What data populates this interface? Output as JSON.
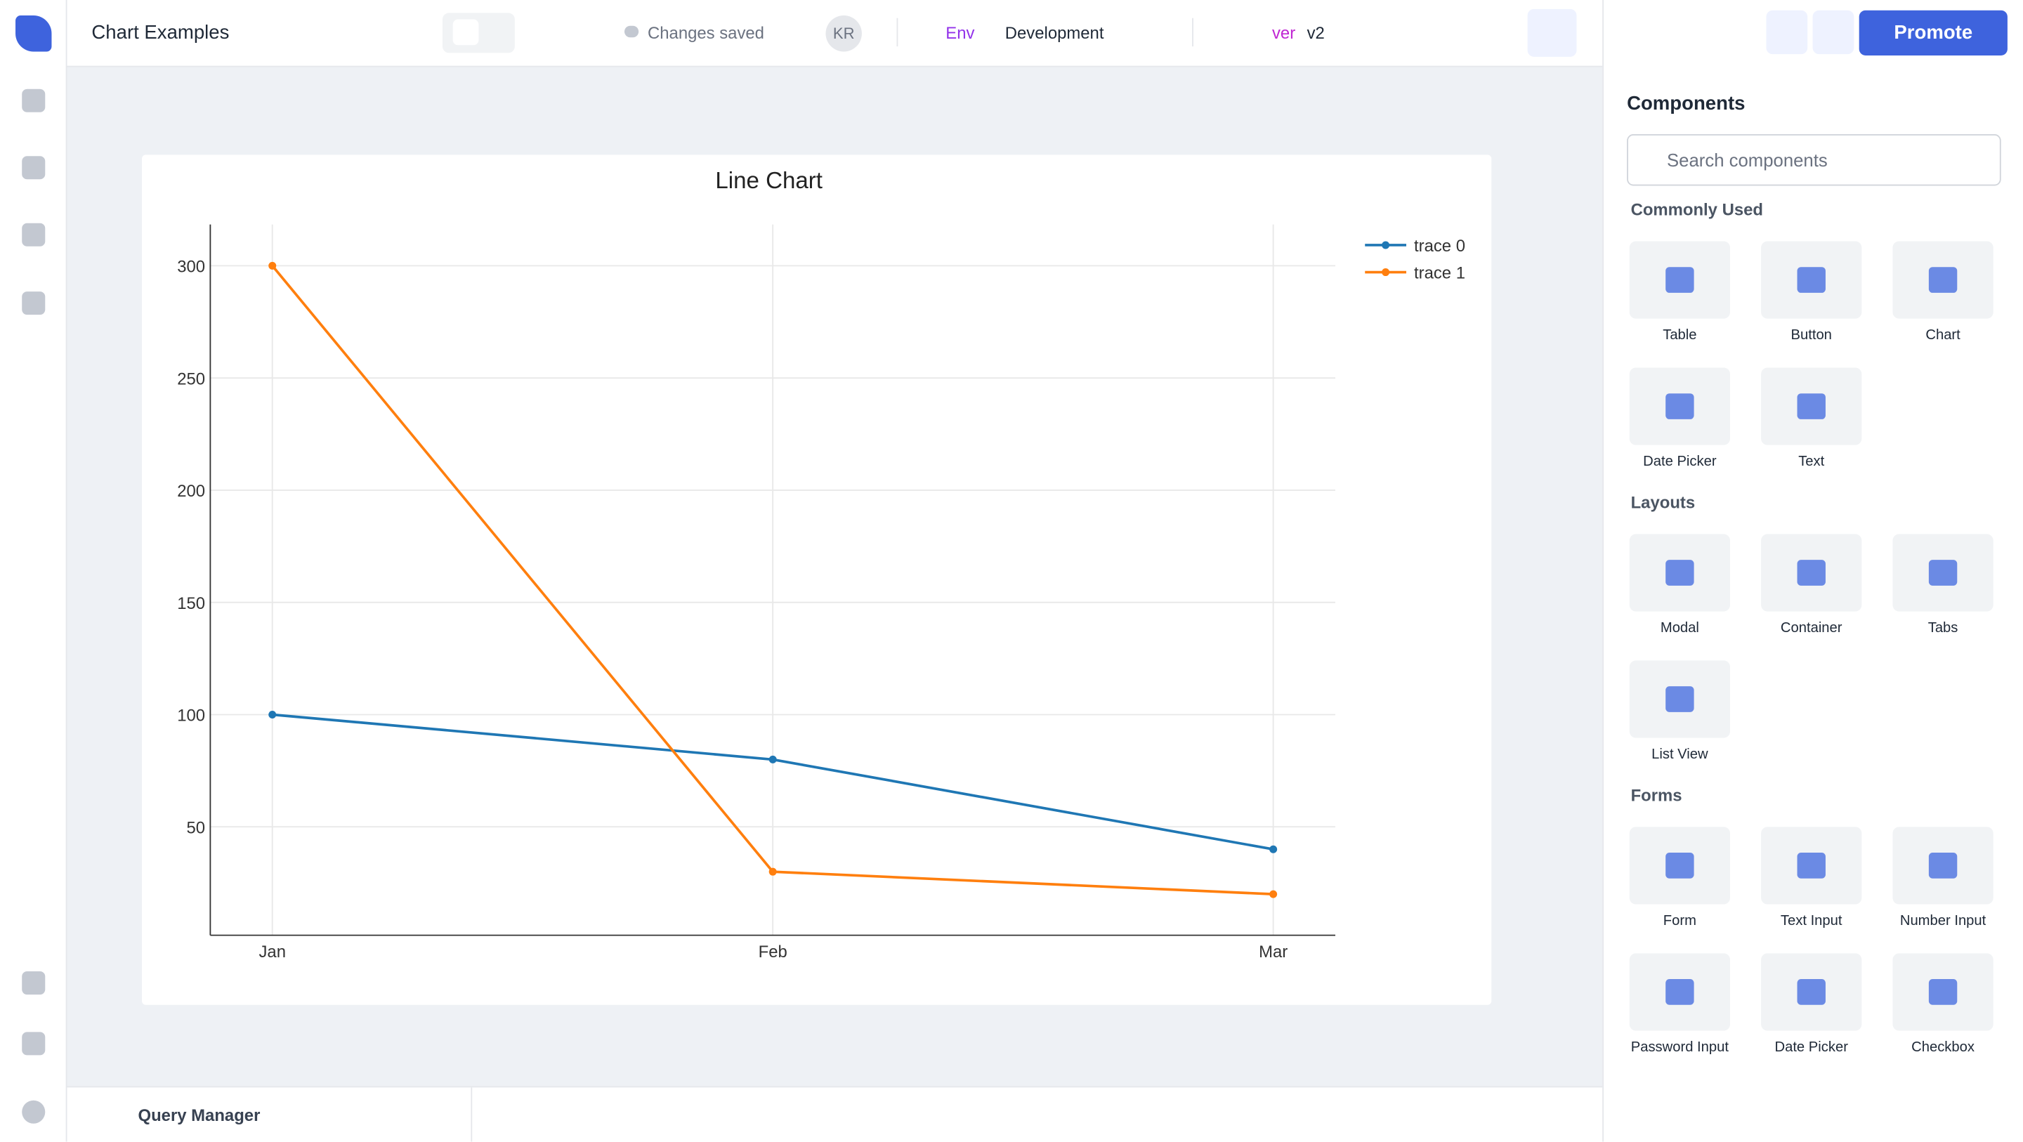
{
  "header": {
    "app_name": "Chart Examples",
    "save_status": "Changes saved",
    "avatar": "KR",
    "env_label": "Env",
    "env_value": "Development",
    "version_label": "ver",
    "version_value": "v2",
    "promote": "Promote"
  },
  "components": {
    "title": "Components",
    "search_placeholder": "Search components",
    "sections": [
      {
        "title": "Commonly Used",
        "items": [
          "Table",
          "Button",
          "Chart",
          "Date Picker",
          "Text"
        ]
      },
      {
        "title": "Layouts",
        "items": [
          "Modal",
          "Container",
          "Tabs",
          "List View"
        ]
      },
      {
        "title": "Forms",
        "items": [
          "Form",
          "Text Input",
          "Number Input",
          "Password Input",
          "Date Picker",
          "Checkbox"
        ]
      }
    ]
  },
  "query_manager": "Query Manager",
  "chart_data": {
    "type": "line",
    "title": "Line Chart",
    "categories": [
      "Jan",
      "Feb",
      "Mar"
    ],
    "series": [
      {
        "name": "trace 0",
        "color": "#1f77b4",
        "values": [
          100,
          80,
          40
        ]
      },
      {
        "name": "trace 1",
        "color": "#ff7f0e",
        "values": [
          300,
          30,
          20
        ]
      }
    ],
    "ylim": [
      1.7,
      318.4
    ],
    "yticks": [
      50,
      100,
      150,
      200,
      250,
      300
    ],
    "grid": true,
    "legend": "top-right"
  }
}
